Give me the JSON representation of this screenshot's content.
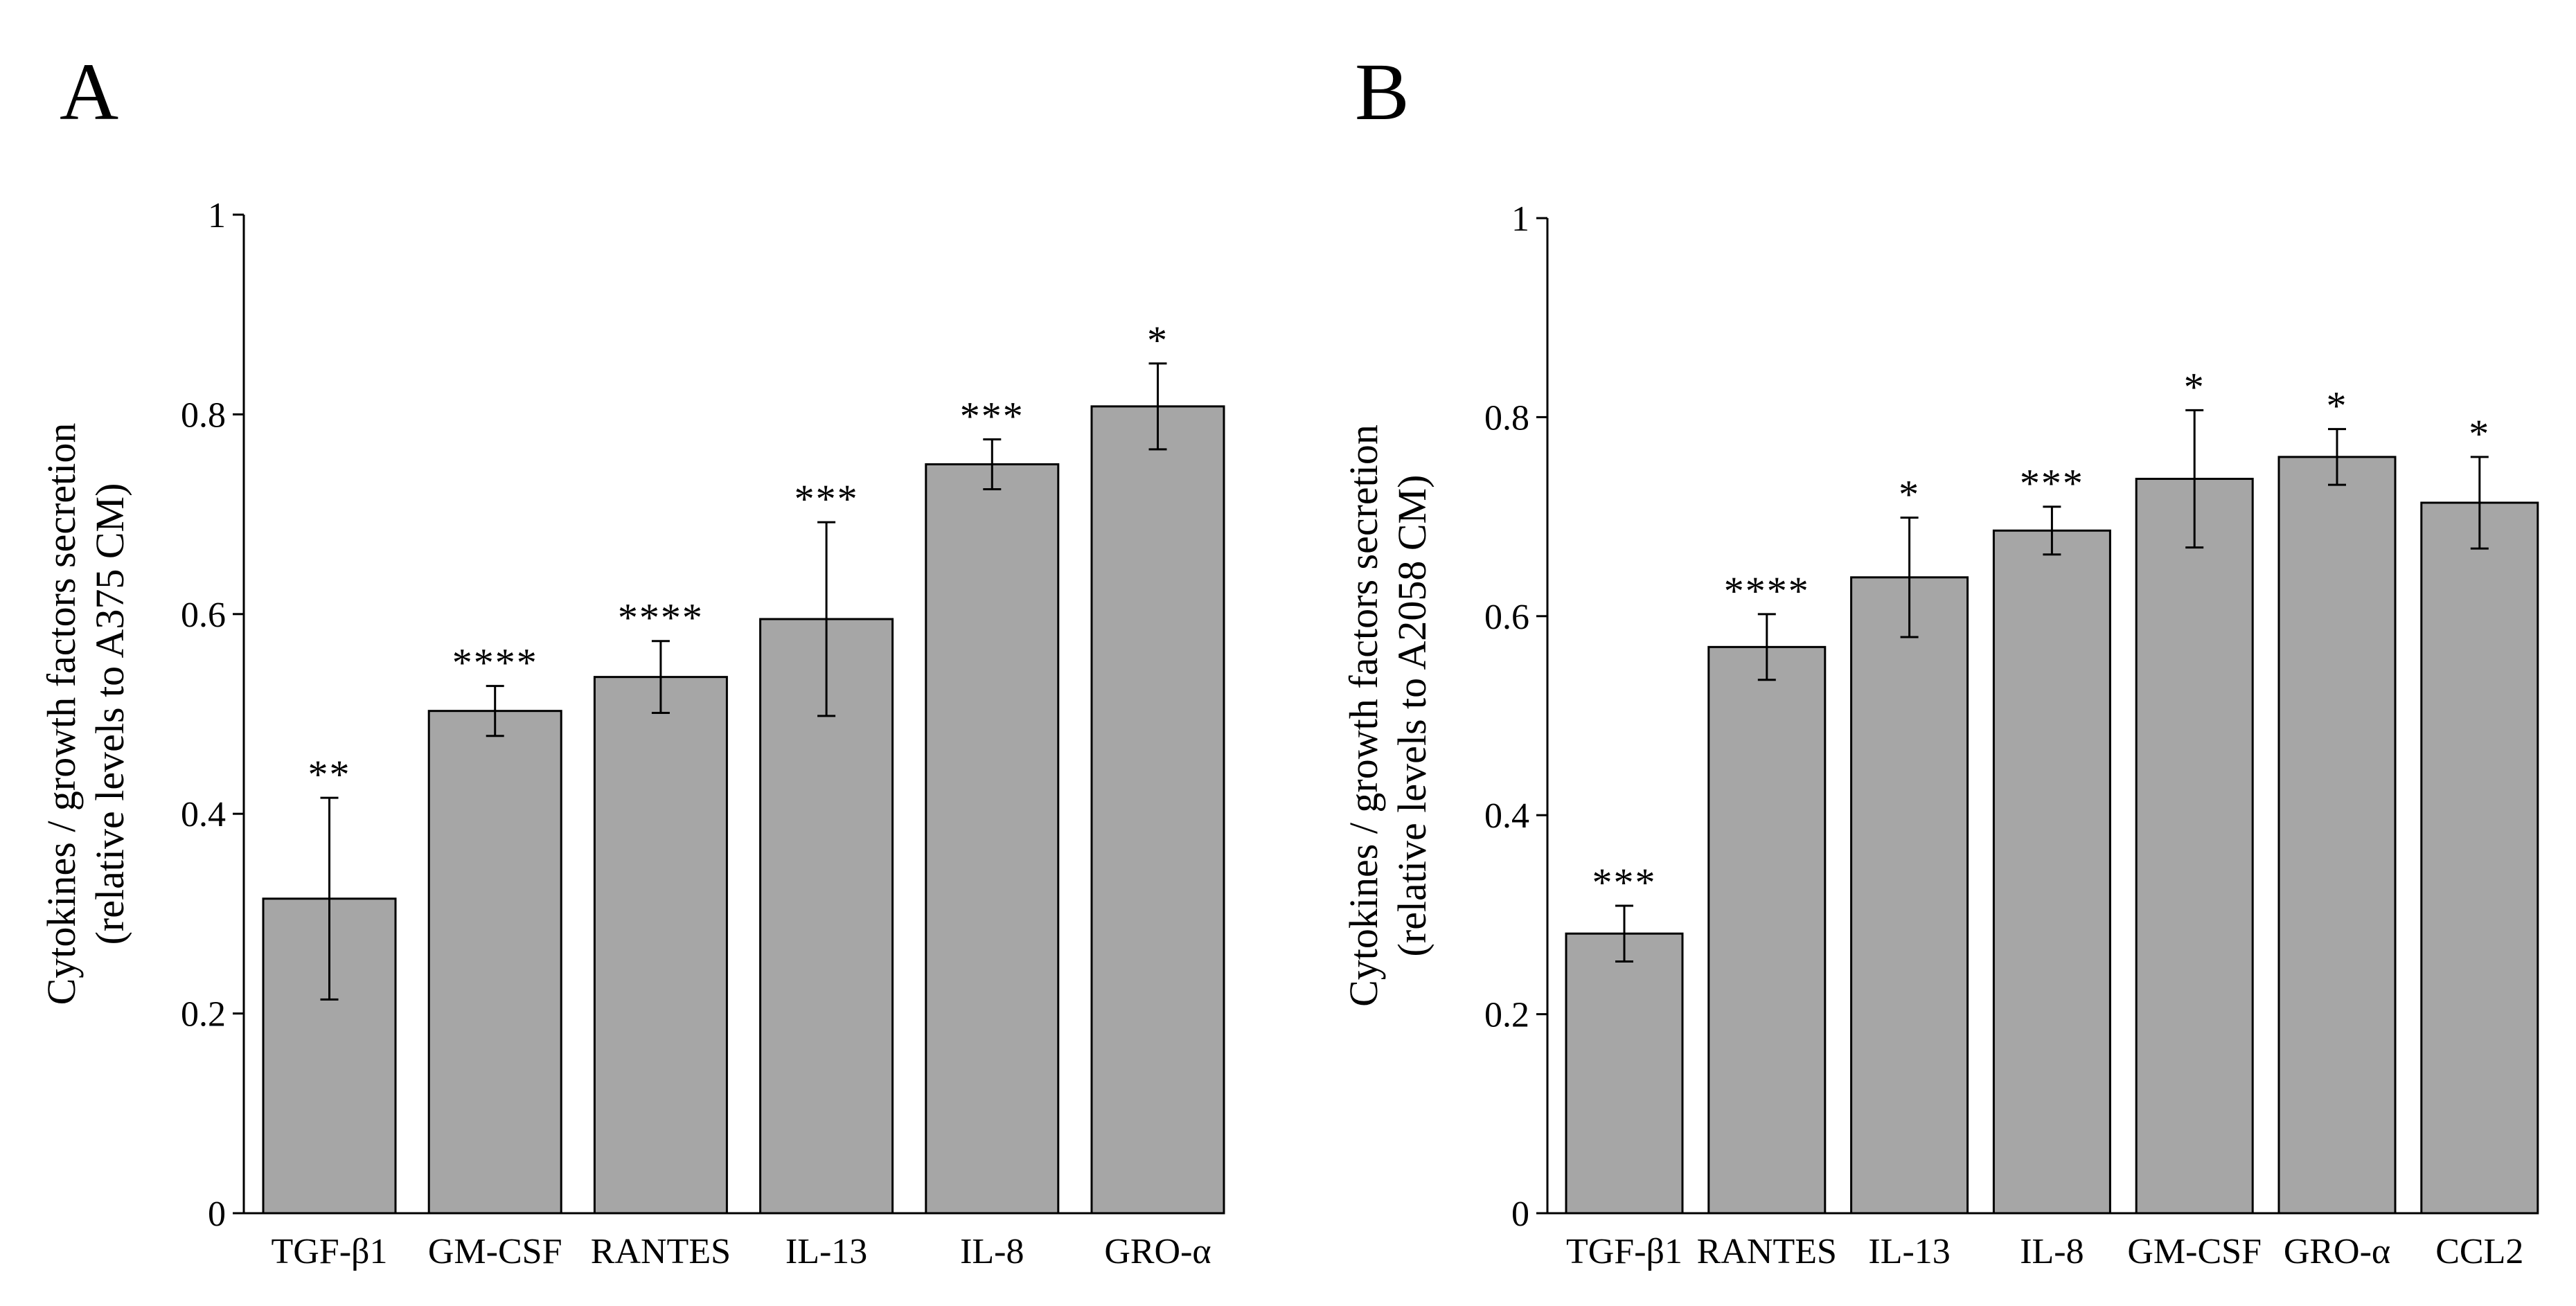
{
  "chart_data": [
    {
      "type": "bar",
      "panel": "A",
      "categories": [
        "TGF-β1",
        "GM-CSF",
        "RANTES",
        "IL-13",
        "IL-8",
        "GRO-α"
      ],
      "values": [
        0.315,
        0.503,
        0.537,
        0.595,
        0.75,
        0.808
      ],
      "errors": [
        0.101,
        0.025,
        0.036,
        0.097,
        0.025,
        0.043
      ],
      "significance": [
        "**",
        "****",
        "****",
        "***",
        "***",
        "*"
      ],
      "ylabel_lines": [
        "Cytokines / growth factors secretion",
        "(relative levels to A375 CM)"
      ],
      "xlabel": "",
      "ylim": [
        0,
        1
      ],
      "yticks": [
        0,
        0.2,
        0.4,
        0.6,
        0.8,
        1
      ],
      "ytick_labels": [
        "0",
        "0.2",
        "0.4",
        "0.6",
        "0.8",
        "1"
      ],
      "bar_color": "#a6a6a6",
      "grid": false
    },
    {
      "type": "bar",
      "panel": "B",
      "categories": [
        "TGF-β1",
        "RANTES",
        "IL-13",
        "IL-8",
        "GM-CSF",
        "GRO-α",
        "CCL2"
      ],
      "values": [
        0.281,
        0.569,
        0.639,
        0.686,
        0.738,
        0.76,
        0.714
      ],
      "errors": [
        0.028,
        0.033,
        0.06,
        0.024,
        0.069,
        0.028,
        0.046
      ],
      "significance": [
        "***",
        "****",
        "*",
        "***",
        "*",
        "*",
        "*"
      ],
      "ylabel_lines": [
        "Cytokines / growth factors secretion",
        "(relative levels to A2058 CM)"
      ],
      "xlabel": "",
      "ylim": [
        0,
        1
      ],
      "yticks": [
        0,
        0.2,
        0.4,
        0.6,
        0.8,
        1
      ],
      "ytick_labels": [
        "0",
        "0.2",
        "0.4",
        "0.6",
        "0.8",
        "1"
      ],
      "bar_color": "#a6a6a6",
      "grid": false
    }
  ]
}
